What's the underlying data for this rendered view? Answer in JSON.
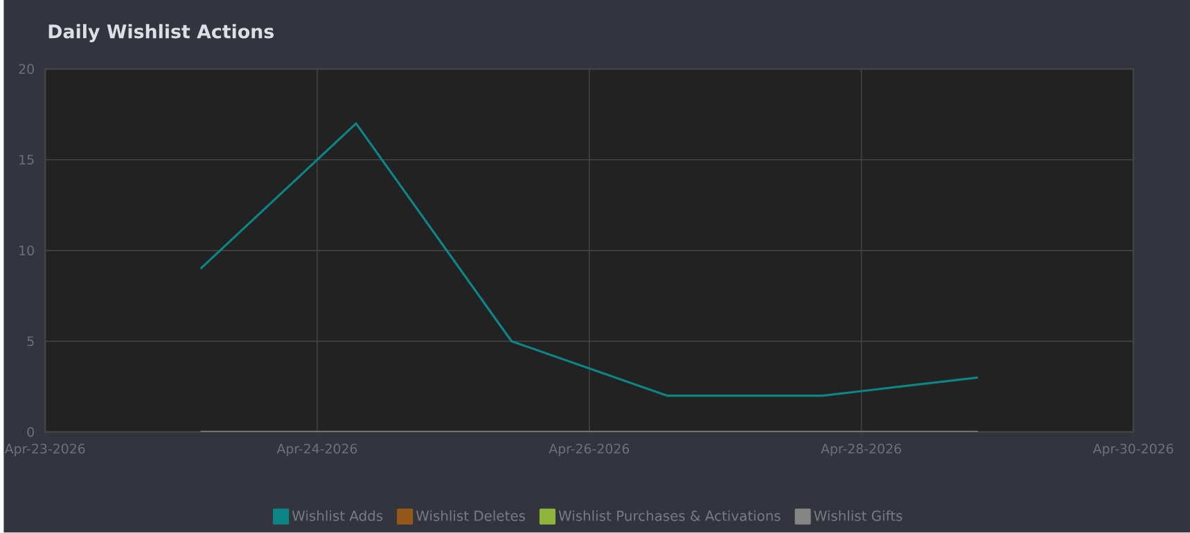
{
  "chart_data": {
    "type": "line",
    "title": "Daily Wishlist Actions",
    "x": [
      "2026-04-24",
      "2026-04-25",
      "2026-04-26",
      "2026-04-27",
      "2026-04-28",
      "2026-04-29"
    ],
    "xlim": [
      "2026-04-23T00:00",
      "2026-04-30T00:00"
    ],
    "xticks": [
      {
        "value": "2026-04-23T00:00",
        "label": "Apr-23-2026"
      },
      {
        "value": "2026-04-24T18:00",
        "label": "Apr-24-2026"
      },
      {
        "value": "2026-04-26T12:00",
        "label": "Apr-26-2026"
      },
      {
        "value": "2026-04-28T06:00",
        "label": "Apr-28-2026"
      },
      {
        "value": "2026-04-30T00:00",
        "label": "Apr-30-2026"
      }
    ],
    "ylim": [
      0,
      20
    ],
    "yticks": [
      0,
      5,
      10,
      15,
      20
    ],
    "grid": true,
    "legend": "bottom",
    "series": [
      {
        "name": "Wishlist Adds",
        "color": "#0e8585",
        "values": [
          9,
          17,
          5,
          2,
          2,
          3
        ]
      },
      {
        "name": "Wishlist Deletes",
        "color": "#95581a",
        "values": [
          null,
          null,
          null,
          null,
          null,
          null
        ]
      },
      {
        "name": "Wishlist Purchases & Activations",
        "color": "#8db63a",
        "values": [
          null,
          null,
          null,
          null,
          null,
          null
        ]
      },
      {
        "name": "Wishlist Gifts",
        "color": "#858585",
        "values": [
          0,
          0,
          0,
          0,
          0,
          0
        ]
      }
    ]
  }
}
